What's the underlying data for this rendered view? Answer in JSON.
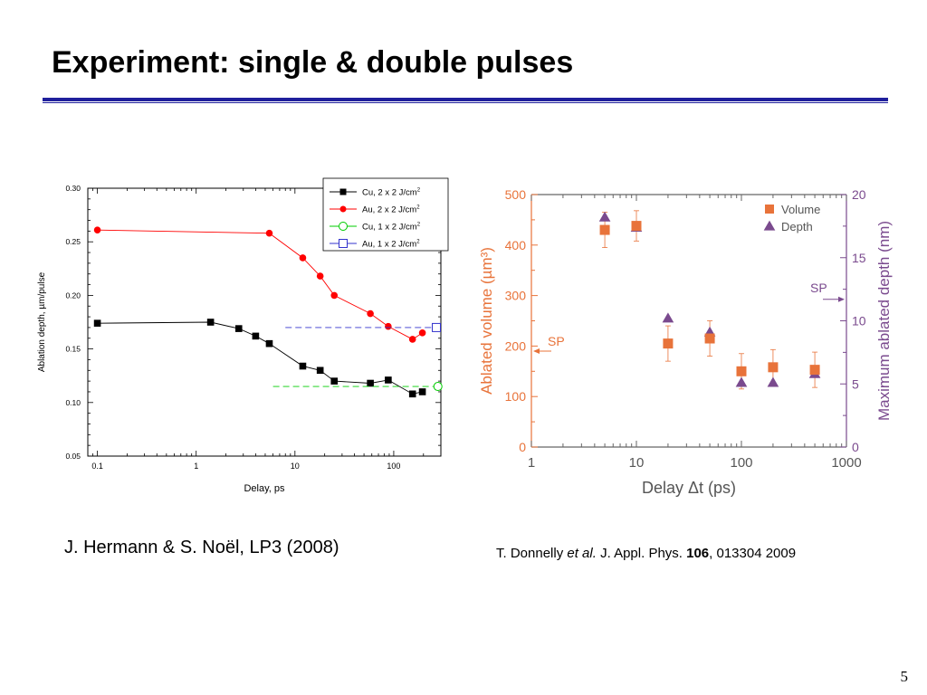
{
  "slide": {
    "title": "Experiment: single & double pulses",
    "caption_left": "J. Hermann & S. Noël, LP3 (2008)",
    "caption_right": {
      "author": "T. Donnelly ",
      "etal": "et al.",
      "journal": " J. Appl. Phys. ",
      "volume": "106",
      "rest": ", 013304 2009"
    },
    "page_number": "5"
  },
  "colors": {
    "title_rule": "#1f1f9c",
    "cu": "#000000",
    "au": "#ff0000",
    "cu_single": "#00cc00",
    "au_single": "#3333cc",
    "volume": "#e8733a",
    "depth": "#7a4a8e"
  },
  "chart_data": [
    {
      "type": "scatter",
      "xlabel": "Delay, ps",
      "ylabel": "Ablation depth, µm/pulse",
      "x_scale": "log",
      "xlim": [
        0.08,
        300
      ],
      "ylim": [
        0.05,
        0.3
      ],
      "x_ticks": [
        0.1,
        1,
        10,
        100
      ],
      "x_tick_labels": [
        "0.1",
        "1",
        "10",
        "100"
      ],
      "y_ticks": [
        0.05,
        0.1,
        0.15,
        0.2,
        0.25,
        0.3
      ],
      "y_tick_labels": [
        "0.05",
        "0.10",
        "0.15",
        "0.20",
        "0.25",
        "0.30"
      ],
      "legend_position": "top-right",
      "series": [
        {
          "name": "Cu, 2 x 2 J/cm",
          "sup": "2",
          "color": "#000000",
          "marker": "filled-square",
          "line": "solid",
          "x": [
            0.1,
            1.4,
            2.7,
            4,
            5.5,
            12,
            18,
            25,
            58,
            88,
            155,
            195
          ],
          "y": [
            0.174,
            0.175,
            0.169,
            0.162,
            0.155,
            0.134,
            0.13,
            0.12,
            0.118,
            0.121,
            0.108,
            0.11
          ]
        },
        {
          "name": "Au, 2 x 2 J/cm",
          "sup": "2",
          "color": "#ff0000",
          "marker": "filled-circle",
          "line": "solid",
          "x": [
            0.1,
            5.5,
            12,
            18,
            25,
            58,
            88,
            155,
            195
          ],
          "y": [
            0.261,
            0.258,
            0.235,
            0.218,
            0.2,
            0.183,
            0.171,
            0.159,
            0.165
          ]
        },
        {
          "name": "Cu, 1 x 2 J/cm",
          "sup": "2",
          "color": "#00cc00",
          "marker": "open-circle",
          "line": "dashed",
          "x": [
            6,
            280
          ],
          "y": [
            0.115,
            0.115
          ],
          "marker_x": [
            280
          ]
        },
        {
          "name": "Au, 1 x 2 J/cm",
          "sup": "2",
          "color": "#3333cc",
          "marker": "open-square",
          "line": "dashed",
          "x": [
            8,
            270
          ],
          "y": [
            0.17,
            0.17
          ],
          "marker_x": [
            270
          ]
        }
      ]
    },
    {
      "type": "scatter",
      "xlabel": "Delay Δt (ps)",
      "ylabel_left": "Ablated volume (µm³)",
      "ylabel_right": "Maximum ablated depth (nm)",
      "x_scale": "log",
      "xlim": [
        1,
        1000
      ],
      "ylim_left": [
        0,
        500
      ],
      "ylim_right": [
        0,
        20
      ],
      "x_ticks": [
        1,
        10,
        100,
        1000
      ],
      "x_tick_labels": [
        "1",
        "10",
        "100",
        "1000"
      ],
      "y_left_ticks": [
        0,
        100,
        200,
        300,
        400,
        500
      ],
      "y_left_tick_labels": [
        "0",
        "100",
        "200",
        "300",
        "400",
        "500"
      ],
      "y_right_ticks": [
        0,
        5,
        10,
        15,
        20
      ],
      "y_right_tick_labels": [
        "0",
        "5",
        "10",
        "15",
        "20"
      ],
      "legend_position": "top-right",
      "series": [
        {
          "name": "Volume",
          "axis": "left",
          "color": "#e8733a",
          "marker": "filled-square",
          "x": [
            5,
            10,
            20,
            50,
            100,
            200,
            500
          ],
          "y": [
            430,
            438,
            205,
            215,
            150,
            158,
            153
          ],
          "error": [
            35,
            30,
            35,
            35,
            35,
            35,
            35
          ]
        },
        {
          "name": "Depth",
          "axis": "right",
          "color": "#7a4a8e",
          "marker": "filled-triangle",
          "x": [
            5,
            10,
            20,
            50,
            100,
            200,
            500
          ],
          "y": [
            18.2,
            17.4,
            10.2,
            9.1,
            5.1,
            5.1,
            5.8
          ]
        }
      ],
      "annotations": [
        {
          "text": "SP",
          "axis": "left",
          "y": 190,
          "side": "left"
        },
        {
          "text": "SP",
          "axis": "right",
          "y": 11.7,
          "side": "right"
        }
      ]
    }
  ]
}
